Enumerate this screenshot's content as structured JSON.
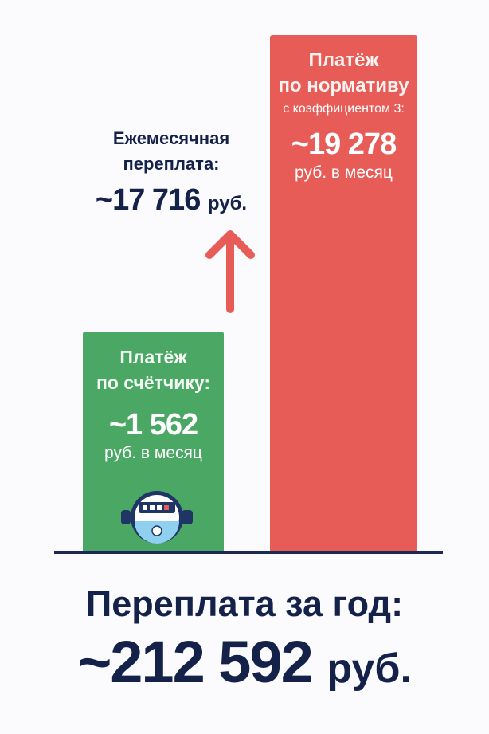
{
  "chart_data": {
    "type": "bar",
    "categories": [
      "Платёж по счётчику",
      "Платёж по нормативу"
    ],
    "values": [
      1562,
      19278
    ],
    "ylim": [
      0,
      20000
    ],
    "grid": false,
    "colors": [
      "#4aa864",
      "#e85c58"
    ],
    "bars": [
      {
        "line1": "Платёж",
        "line2": "по счётчику:",
        "value_text": "~1 562",
        "unit": "руб. в месяц",
        "icon": "water-meter-icon"
      },
      {
        "line1": "Платёж",
        "line2": "по нормативу",
        "note": "с коэффициентом 3:",
        "value_text": "~19 278",
        "unit": "руб. в месяц"
      }
    ],
    "annotation": {
      "line1": "Ежемесячная",
      "line2": "переплата:",
      "value_text": "~17 716",
      "unit": "руб.",
      "arrow": "up-arrow-icon",
      "arrow_color": "#e85c58"
    },
    "total": {
      "title": "Переплата за год:",
      "value_text": "~212 592",
      "unit": "руб."
    }
  }
}
